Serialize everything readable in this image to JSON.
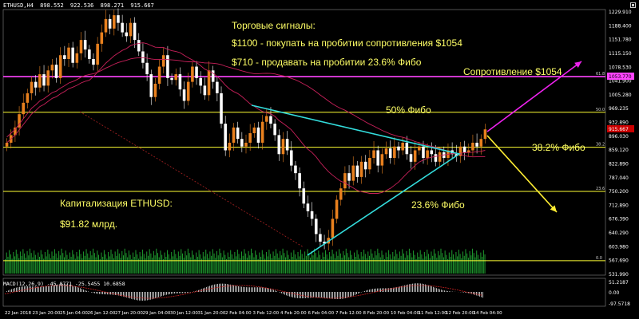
{
  "header": {
    "symbol": "ETHUSD,H4",
    "ohlc": [
      "898.552",
      "922.536",
      "898.271",
      "915.667"
    ]
  },
  "annotations": {
    "signals_title": "Торговые сигналы:",
    "buy_signal": "$1100 - покупать на пробитии сопротивления $1054",
    "sell_signal": "$710 - продавать на пробитии 23.6% Фибо",
    "resistance_label": "Сопротивление $1054",
    "fib50_label": "50% Фибо",
    "fib382_label": "38.2% Фибо",
    "fib236_label": "23.6% Фибо",
    "cap_title": "Капитализация ETHUSD:",
    "cap_value": "$91.82 млрд."
  },
  "indicator": {
    "macd_label": "MACD(12,26,9) -45.0771 -25.5455 10.6858"
  },
  "fib_tags": {
    "l61": "61.8",
    "l50": "50.0",
    "l38": "38.2",
    "l23": "23.6",
    "l0": "0.0"
  },
  "colors": {
    "background": "#000000",
    "bull_candle": "#e8801e",
    "bear_candle": "#ffffff",
    "volume": "#1f9c2f",
    "fib_line": "#ffff33",
    "resistance": "#ff44ff",
    "triangle": "#33dddd",
    "ma": "#c8205a",
    "arrow_up": "#ee22ee",
    "arrow_down": "#ffee33",
    "axis_text": "#ffffff",
    "current_price_tag": "#cc0000",
    "macd_hist": "#bbbbbb",
    "macd_signal": "#cc2222"
  },
  "chart_data": {
    "type": "candlestick",
    "symbol": "ETHUSD",
    "timeframe": "H4",
    "y_axis": {
      "min": 531.99,
      "max": 1229.91,
      "ticks": [
        "1229.910",
        "1188.400",
        "1151.780",
        "1115.150",
        "1078.530",
        "1041.900",
        "1005.280",
        "969.235",
        "932.890",
        "896.030",
        "859.120",
        "822.890",
        "787.040",
        "750.200",
        "712.890",
        "676.390",
        "640.290",
        "603.980",
        "567.690",
        "531.990"
      ]
    },
    "resistance_tag": "1053.770",
    "current_price_tag": "915.667",
    "x_axis": {
      "tick_labels": [
        "22 Jan 2018",
        "23 Jan 20:00",
        "25 Jan 04:00",
        "26 Jan 12:00",
        "27 Jan 20:00",
        "29 Jan 04:00",
        "30 Jan 12:00",
        "31 Jan 20:00",
        "2 Feb 04:00",
        "3 Feb 12:00",
        "4 Feb 20:00",
        "6 Feb 04:00",
        "7 Feb 12:00",
        "8 Feb 20:00",
        "10 Feb 04:00",
        "11 Feb 12:00",
        "12 Feb 20:00",
        "14 Feb 04:00"
      ]
    },
    "close_prices": [
      880,
      900,
      920,
      955,
      985,
      1010,
      1040,
      1025,
      1060,
      1030,
      1070,
      1085,
      1050,
      1110,
      1100,
      1130,
      1090,
      1115,
      1150,
      1125,
      1100,
      1085,
      1140,
      1170,
      1205,
      1180,
      1215,
      1195,
      1170,
      1160,
      1195,
      1150,
      1120,
      1090,
      1060,
      1000,
      1035,
      1080,
      1110,
      1050,
      1045,
      1060,
      1020,
      990,
      1040,
      1080,
      1050,
      1030,
      1005,
      1070,
      1040,
      1010,
      930,
      860,
      880,
      920,
      890,
      870,
      880,
      905,
      920,
      880,
      935,
      950,
      930,
      900,
      850,
      890,
      860,
      820,
      800,
      760,
      720,
      700,
      680,
      640,
      620,
      615,
      630,
      680,
      730,
      760,
      800,
      780,
      820,
      790,
      830,
      810,
      840,
      860,
      820,
      850,
      865,
      840,
      870,
      860,
      880,
      850,
      830,
      860,
      870,
      840,
      860,
      850,
      830,
      855,
      840,
      860,
      850,
      845,
      870,
      855,
      860,
      880,
      870,
      890,
      915
    ],
    "fibonacci_levels": [
      {
        "label": "61.8",
        "price": 1053.77
      },
      {
        "label": "50.0",
        "price": 960.0
      },
      {
        "label": "38.2",
        "price": 868.0
      },
      {
        "label": "23.6",
        "price": 752.0
      },
      {
        "label": "0.0",
        "price": 570.0
      }
    ],
    "macd_axis": {
      "ticks": [
        "51.2187",
        "0.00",
        "-97.5718"
      ]
    }
  }
}
